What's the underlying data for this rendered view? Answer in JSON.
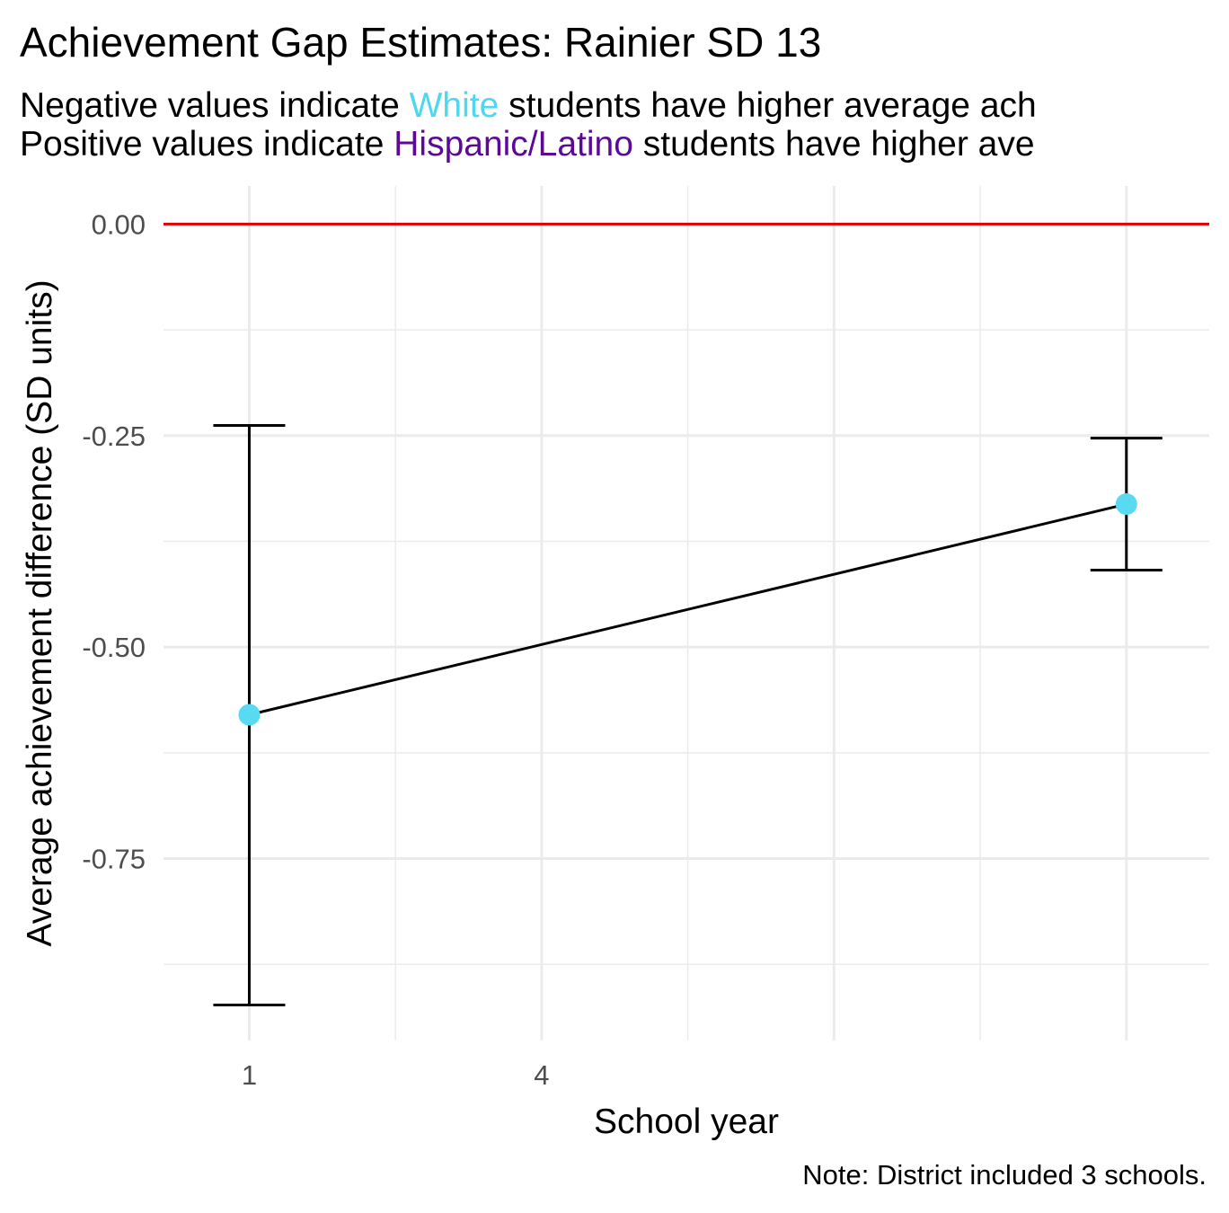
{
  "title": "Achievement Gap Estimates: Rainier SD 13",
  "subtitle": {
    "line1": {
      "before": "Negative values indicate ",
      "group": "White",
      "after": " students have higher average ach"
    },
    "line2": {
      "before": "Positive values indicate ",
      "group": "Hispanic/Latino",
      "after": " students have higher ave"
    }
  },
  "colors": {
    "white_group": "#4dd8f0",
    "hispanic_group": "#5c0a96",
    "reference_line": "#e00000",
    "point": "#5ad9f2"
  },
  "caption": "Note: District included 3 schools.",
  "chart_data": {
    "type": "line",
    "xlabel": "School year",
    "ylabel": "Average achievement difference (SD units)",
    "x_ticks": [
      1,
      4
    ],
    "x_tick_labels": [
      "1",
      "4"
    ],
    "xlim": [
      0.12,
      10.85
    ],
    "y_ticks": [
      0,
      -0.25,
      -0.5,
      -0.75
    ],
    "y_tick_labels": [
      "0.00",
      "-0.25",
      "-0.50",
      "-0.75"
    ],
    "ylim": [
      -0.965,
      0.045
    ],
    "reference_line": 0,
    "grid": true,
    "series": [
      {
        "points": [
          {
            "x": 1,
            "y": -0.58,
            "lower": -0.923,
            "upper": -0.238
          },
          {
            "x": 10,
            "y": -0.331,
            "lower": -0.409,
            "upper": -0.253
          }
        ]
      }
    ]
  }
}
